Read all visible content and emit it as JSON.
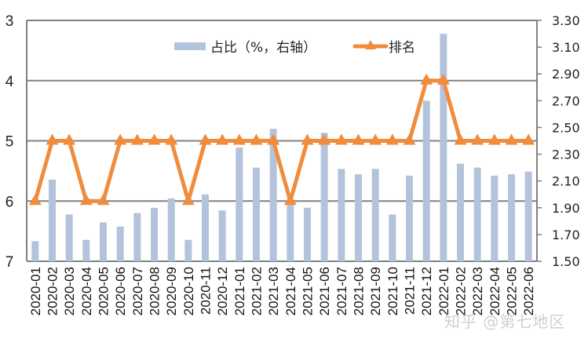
{
  "chart_data": {
    "type": "bar+line",
    "title": "",
    "categories": [
      "2020-01",
      "2020-02",
      "2020-03",
      "2020-04",
      "2020-05",
      "2020-06",
      "2020-07",
      "2020-08",
      "2020-09",
      "2020-10",
      "2020-11",
      "2020-12",
      "2021-01",
      "2021-02",
      "2021-03",
      "2021-04",
      "2021-05",
      "2021-06",
      "2021-07",
      "2021-08",
      "2021-09",
      "2021-10",
      "2021-11",
      "2021-12",
      "2022-01",
      "2022-02",
      "2022-03",
      "2022-04",
      "2022-05",
      "2022-06"
    ],
    "series": [
      {
        "name": "占比（%，右轴）",
        "type": "bar",
        "axis": "right",
        "color": "#b4c3dc",
        "values": [
          1.65,
          2.11,
          1.85,
          1.66,
          1.79,
          1.76,
          1.86,
          1.9,
          1.97,
          1.66,
          2.0,
          1.88,
          2.35,
          2.2,
          2.49,
          1.94,
          1.9,
          2.46,
          2.19,
          2.15,
          2.19,
          1.85,
          2.14,
          2.7,
          3.2,
          2.23,
          2.2,
          2.14,
          2.15,
          2.17
        ]
      },
      {
        "name": "排名",
        "type": "line",
        "axis": "left",
        "color": "#f08c3c",
        "marker": "triangle",
        "values": [
          6,
          5,
          5,
          6,
          6,
          5,
          5,
          5,
          5,
          6,
          5,
          5,
          5,
          5,
          5,
          6,
          5,
          5,
          5,
          5,
          5,
          5,
          5,
          4,
          4,
          5,
          5,
          5,
          5,
          5
        ]
      }
    ],
    "left_axis": {
      "ticks": [
        "3",
        "4",
        "5",
        "6",
        "7"
      ],
      "range": [
        3,
        7
      ],
      "inverted": true
    },
    "right_axis": {
      "ticks": [
        "3.30",
        "3.10",
        "2.90",
        "2.70",
        "2.50",
        "2.30",
        "2.10",
        "1.90",
        "1.70",
        "1.50"
      ],
      "range": [
        1.5,
        3.3
      ]
    },
    "grid": "horizontal at left-axis ticks",
    "legend_position": "top-center inside plot"
  },
  "legend": {
    "bar_label": "占比（%，右轴）",
    "line_label": "排名"
  },
  "watermark": "知乎 @第七地区"
}
